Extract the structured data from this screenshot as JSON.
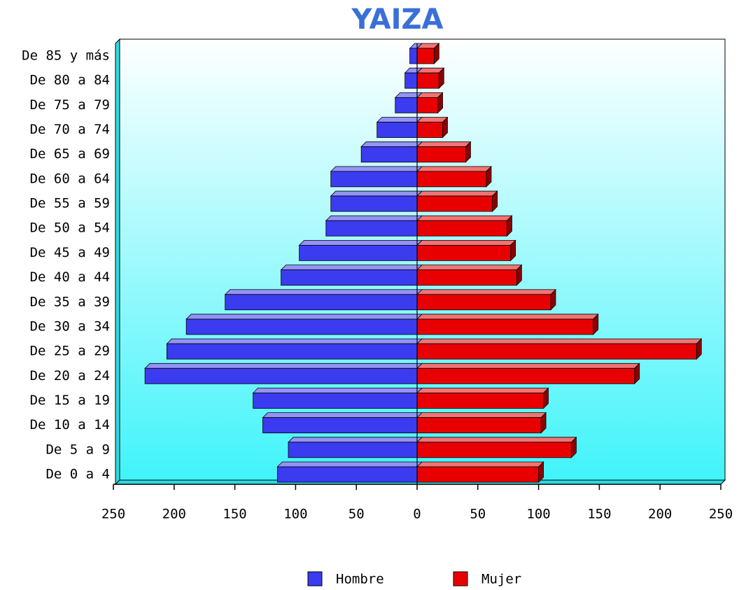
{
  "chart_data": {
    "type": "pyramid",
    "title": "YAIZA",
    "categories": [
      "De 85 y más",
      "De 80 a 84",
      "De 75 a 79",
      "De 70 a 74",
      "De 65 a 69",
      "De 60 a 64",
      "De 55 a 59",
      "De 50 a 54",
      "De 45 a 49",
      "De 40 a 44",
      "De 35 a 39",
      "De 30 a 34",
      "De 25 a 29",
      "De 20 a 24",
      "De 15 a 19",
      "De 10 a 14",
      "De 5 a 9",
      "De 0 a 4"
    ],
    "series": [
      {
        "name": "Hombre",
        "color": "#3b3bf0",
        "side": "left",
        "values": [
          6,
          10,
          18,
          33,
          46,
          71,
          71,
          75,
          97,
          112,
          158,
          190,
          206,
          224,
          135,
          127,
          106,
          115
        ]
      },
      {
        "name": "Mujer",
        "color": "#e80000",
        "side": "right",
        "values": [
          14,
          18,
          17,
          21,
          40,
          57,
          62,
          74,
          77,
          82,
          110,
          145,
          230,
          179,
          104,
          102,
          127,
          100
        ]
      }
    ],
    "xlim": [
      -250,
      250
    ],
    "xticks": [
      {
        "value": -250,
        "label": "250"
      },
      {
        "value": -200,
        "label": "200"
      },
      {
        "value": -150,
        "label": "150"
      },
      {
        "value": -100,
        "label": "100"
      },
      {
        "value": -50,
        "label": "50"
      },
      0,
      50,
      100,
      150,
      200,
      250
    ]
  }
}
